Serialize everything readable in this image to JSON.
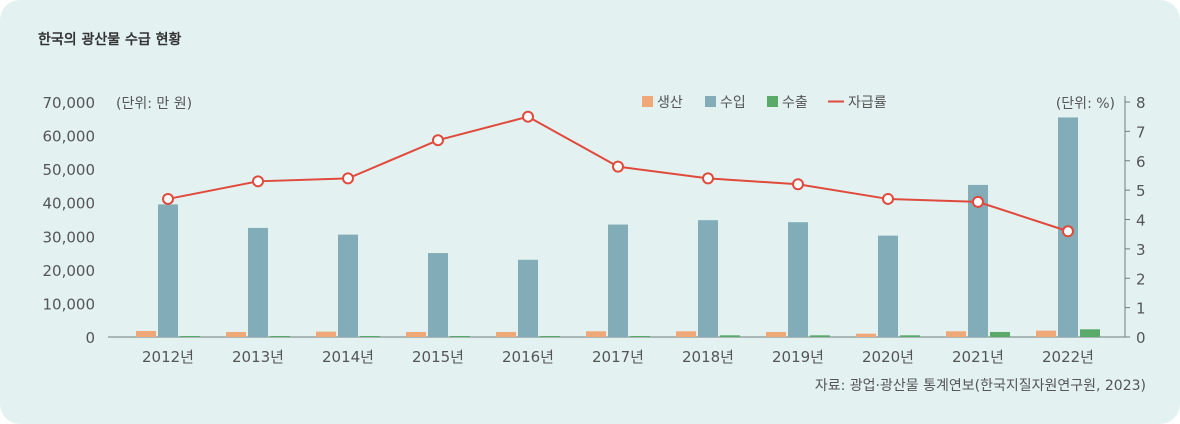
{
  "title": "한국의 광산물 수급 현황",
  "source": "자료: 광업·광산물 통계연보(한국지질자원연구원, 2023)",
  "colors": {
    "background": "#e3f2f1",
    "production": "#f0a878",
    "imports": "#82adb8",
    "exports": "#5aaa6a",
    "self_sufficiency": "#e04a3c",
    "axis": "#6f7d7d",
    "text": "#555555"
  },
  "chart_data": {
    "type": "bar",
    "categories": [
      "2012년",
      "2013년",
      "2014년",
      "2015년",
      "2016년",
      "2017년",
      "2018년",
      "2019년",
      "2020년",
      "2021년",
      "2022년"
    ],
    "left_axis": {
      "unit_label": "(단위: 만 원)",
      "ylim": [
        0,
        70000
      ],
      "ticks": [
        0,
        10000,
        20000,
        30000,
        40000,
        50000,
        60000,
        70000
      ],
      "tick_labels": [
        "0",
        "10,000",
        "20,000",
        "30,000",
        "40,000",
        "50,000",
        "60,000",
        "70,000"
      ]
    },
    "right_axis": {
      "unit_label": "(단위: %)",
      "ylim": [
        0,
        8
      ],
      "ticks": [
        0,
        1,
        2,
        3,
        4,
        5,
        6,
        7,
        8
      ],
      "tick_labels": [
        "0",
        "1",
        "2",
        "3",
        "4",
        "5",
        "6",
        "7",
        "8"
      ]
    },
    "series": [
      {
        "name": "생산",
        "type": "bar",
        "axis": "left",
        "values": [
          1800,
          1500,
          1600,
          1500,
          1500,
          1700,
          1700,
          1500,
          1000,
          1700,
          1900
        ]
      },
      {
        "name": "수입",
        "type": "bar",
        "axis": "left",
        "values": [
          39500,
          32500,
          30500,
          25000,
          23000,
          33500,
          34800,
          34200,
          30200,
          45300,
          65400
        ]
      },
      {
        "name": "수출",
        "type": "bar",
        "axis": "left",
        "values": [
          300,
          300,
          300,
          300,
          300,
          300,
          500,
          500,
          500,
          1500,
          2300
        ]
      },
      {
        "name": "자급률",
        "type": "line",
        "axis": "right",
        "values": [
          4.7,
          5.3,
          5.4,
          6.7,
          7.5,
          5.8,
          5.4,
          5.2,
          4.7,
          4.6,
          3.6
        ]
      }
    ],
    "legend_position": "top-right",
    "grid": false
  }
}
